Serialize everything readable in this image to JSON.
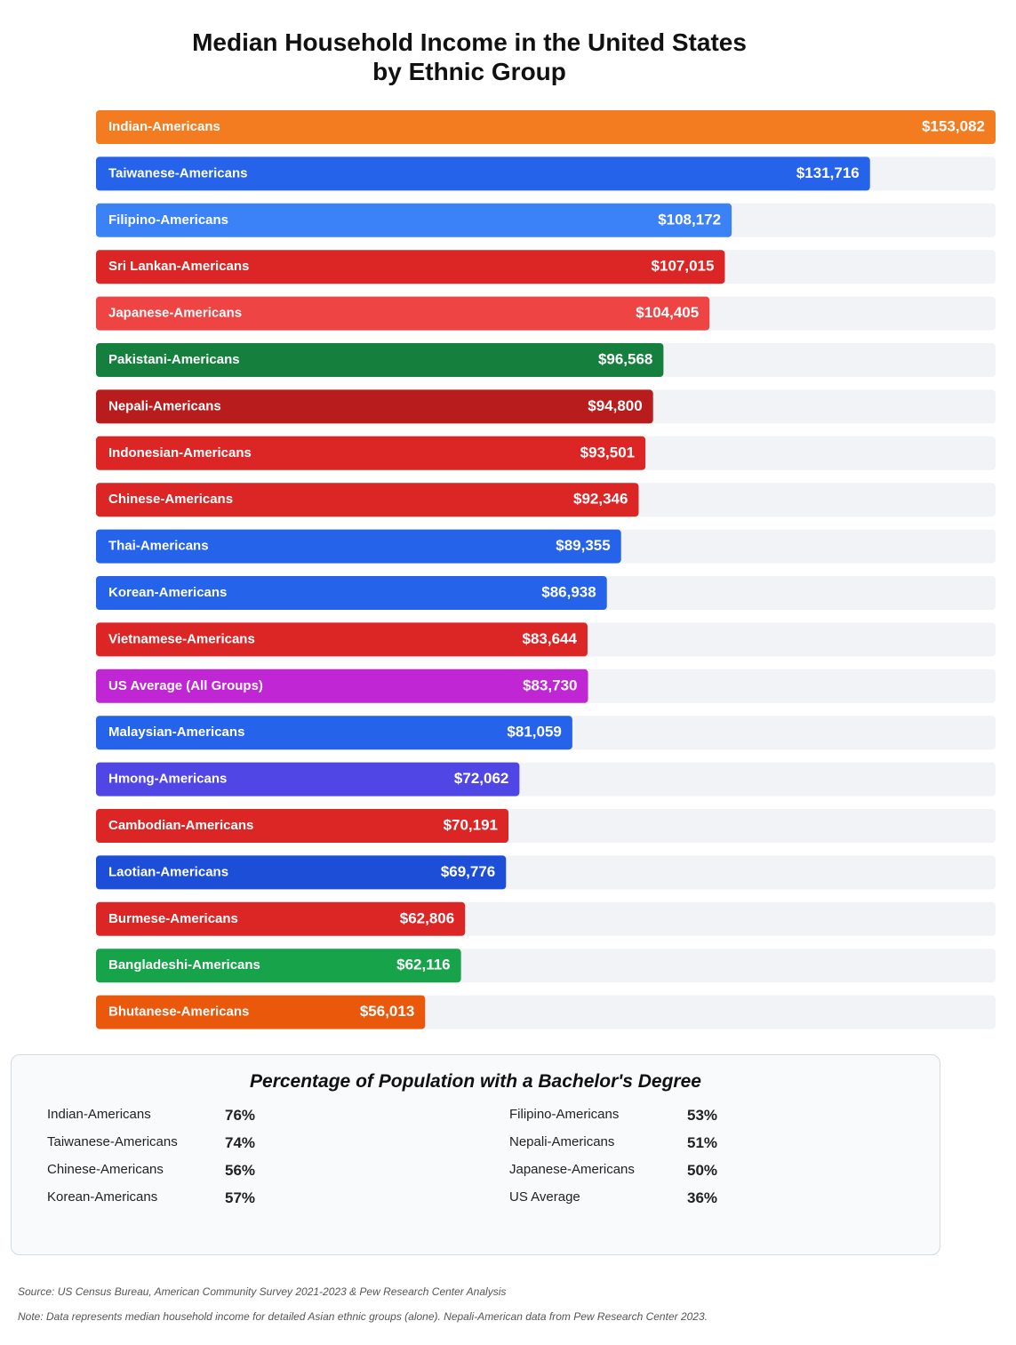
{
  "chart_data": {
    "type": "bar",
    "orientation": "horizontal",
    "title": "Median Household Income in the United States by Ethnic Group",
    "categories": [
      "Indian-Americans",
      "Taiwanese-Americans",
      "Filipino-Americans",
      "Sri Lankan-Americans",
      "Japanese-Americans",
      "Pakistani-Americans",
      "Nepali-Americans",
      "Indonesian-Americans",
      "Chinese-Americans",
      "Thai-Americans",
      "Korean-Americans",
      "Vietnamese-Americans",
      "US Average (All Groups)",
      "Malaysian-Americans",
      "Hmong-Americans",
      "Cambodian-Americans",
      "Laotian-Americans",
      "Burmese-Americans",
      "Bangladeshi-Americans",
      "Bhutanese-Americans"
    ],
    "values": [
      153082,
      131716,
      108172,
      107015,
      104405,
      96568,
      94800,
      93501,
      92346,
      89355,
      86938,
      83644,
      83730,
      81059,
      72062,
      70191,
      69776,
      62806,
      62116,
      56013
    ],
    "value_labels": [
      "$153,082",
      "$131,716",
      "$108,172",
      "$107,015",
      "$104,405",
      "$96,568",
      "$94,800",
      "$93,501",
      "$92,346",
      "$89,355",
      "$86,938",
      "$83,644",
      "$83,730",
      "$81,059",
      "$72,062",
      "$70,191",
      "$69,776",
      "$62,806",
      "$62,116",
      "$56,013"
    ],
    "colors": [
      "#f47c20",
      "#2563eb",
      "#3b82f6",
      "#dc2626",
      "#ef4444",
      "#15803d",
      "#b91c1c",
      "#dc2626",
      "#dc2626",
      "#2563eb",
      "#2563eb",
      "#dc2626",
      "#c026d3",
      "#2563eb",
      "#4f46e5",
      "#dc2626",
      "#1d4ed8",
      "#dc2626",
      "#16a34a",
      "#ea580c"
    ]
  },
  "education": {
    "title": "Percentage of Population with a Bachelor's Degree",
    "rows": [
      [
        "Indian-Americans",
        "76%",
        "Filipino-Americans",
        "53%"
      ],
      [
        "Taiwanese-Americans",
        "74%",
        "Nepali-Americans",
        "51%"
      ],
      [
        "Chinese-Americans",
        "56%",
        "Japanese-Americans",
        "50%"
      ],
      [
        "Korean-Americans",
        "57%",
        "US Average",
        "36%"
      ]
    ]
  },
  "footer": {
    "source": "Source: US Census Bureau, American Community Survey 2021-2023 & Pew Research Center Analysis",
    "note": "Note: Data represents median household income for detailed Asian ethnic groups (alone). Nepali-American data from Pew Research Center 2023."
  }
}
